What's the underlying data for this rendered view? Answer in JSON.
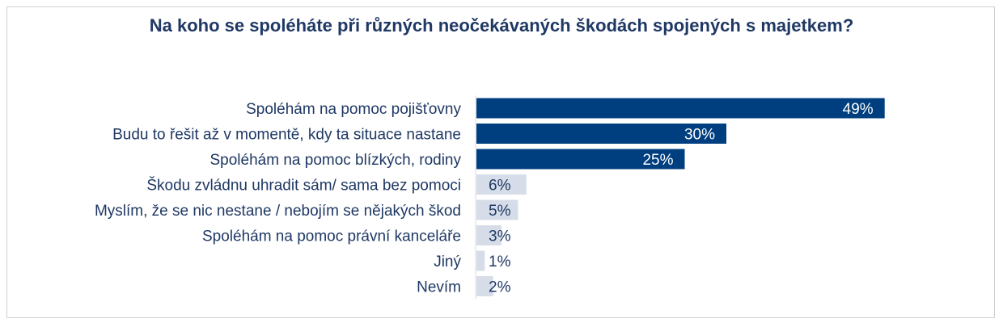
{
  "chart_data": {
    "type": "bar",
    "orientation": "horizontal",
    "title": "Na koho se spoléháte při různých neočekávaných škodách spojených s majetkem?",
    "categories": [
      "Spoléhám na pomoc pojišťovny",
      "Budu to řešit až v momentě, kdy ta situace nastane",
      "Spoléhám na pomoc blízkých, rodiny",
      "Škodu zvládnu uhradit sám/ sama bez pomoci",
      "Myslím, že se nic nestane / nebojím se nějakých škod",
      "Spoléhám na pomoc právní kanceláře",
      "Jiný",
      "Nevím"
    ],
    "values": [
      49,
      30,
      25,
      6,
      5,
      3,
      1,
      2
    ],
    "value_labels": [
      "49%",
      "30%",
      "25%",
      "6%",
      "5%",
      "3%",
      "1%",
      "2%"
    ],
    "unit": "%",
    "xlim": [
      0,
      100
    ],
    "grid": false,
    "legend": "none",
    "colors": {
      "highlight": "#003f7f",
      "muted": "#d6dde8",
      "title": "#1f3864",
      "label": "#1f3864",
      "value_on_dark": "#ffffff",
      "value_on_light": "#1f3864"
    },
    "highlight_count": 3
  }
}
